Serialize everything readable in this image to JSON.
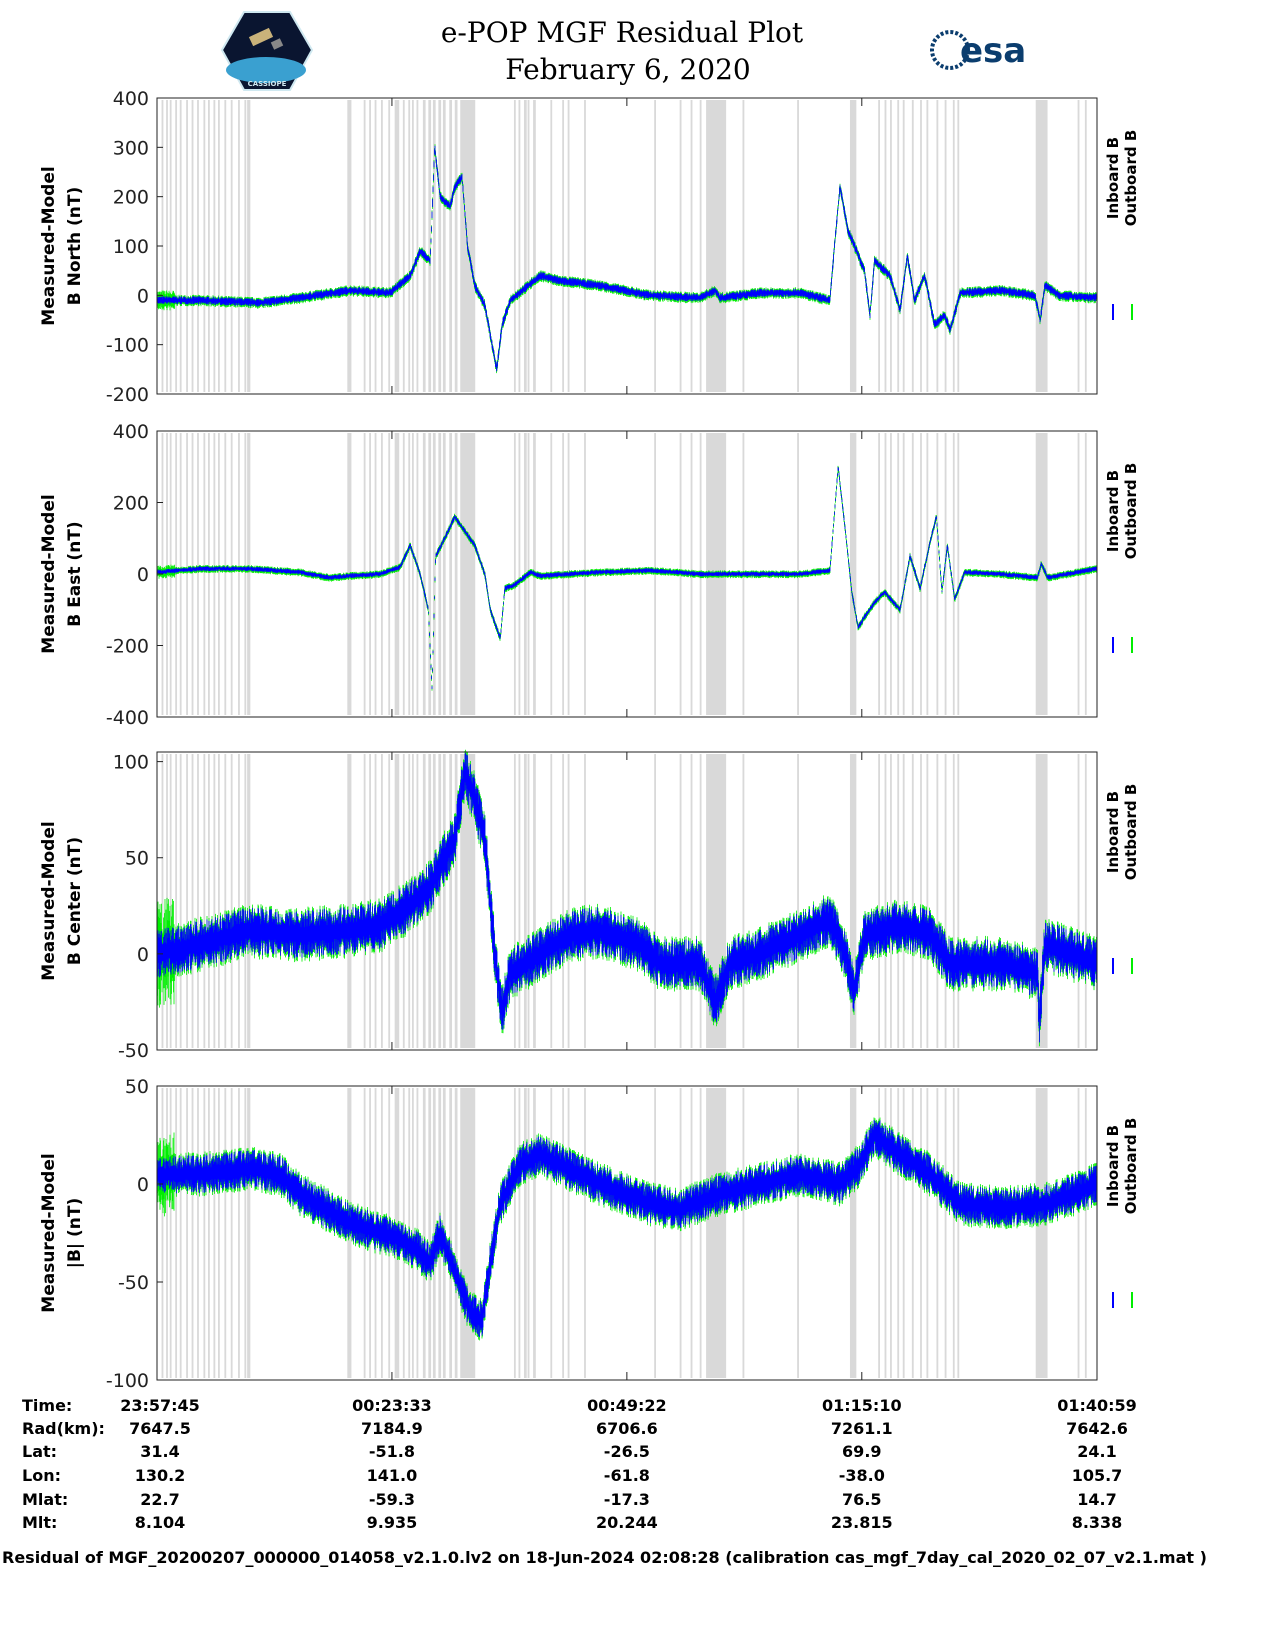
{
  "header": {
    "title": "e-POP MGF Residual Plot",
    "date": "February 6, 2020",
    "left_logo_text": "CASSIOPE",
    "right_logo_text": "esa"
  },
  "colors": {
    "inboard": "#0000ff",
    "outboard": "#00ee00",
    "gap": "#d9d9d9"
  },
  "chart_data": {
    "type": "line",
    "x_unit": "minutes since 23:57:45",
    "xlim": [
      0,
      103.23
    ],
    "x_ticks": [
      0,
      25.8,
      51.6,
      77.4,
      103.23
    ],
    "gap_bands_minutes": [
      [
        0.5,
        0.2
      ],
      [
        1.0,
        0.2
      ],
      [
        1.4,
        0.2
      ],
      [
        2.0,
        0.2
      ],
      [
        2.5,
        0.2
      ],
      [
        3.2,
        0.2
      ],
      [
        3.8,
        0.2
      ],
      [
        4.4,
        0.2
      ],
      [
        5.1,
        0.2
      ],
      [
        5.6,
        0.2
      ],
      [
        6.2,
        0.2
      ],
      [
        6.7,
        0.2
      ],
      [
        7.4,
        0.2
      ],
      [
        8.1,
        0.2
      ],
      [
        8.9,
        0.2
      ],
      [
        9.6,
        0.2
      ],
      [
        9.9,
        0.35
      ],
      [
        20.9,
        0.45
      ],
      [
        22.7,
        0.2
      ],
      [
        23.3,
        0.2
      ],
      [
        23.9,
        0.2
      ],
      [
        24.6,
        0.2
      ],
      [
        25.4,
        0.2
      ],
      [
        26.1,
        0.5
      ],
      [
        27.0,
        0.2
      ],
      [
        27.6,
        0.2
      ],
      [
        28.0,
        0.2
      ],
      [
        28.5,
        0.2
      ],
      [
        29.2,
        0.3
      ],
      [
        29.8,
        0.3
      ],
      [
        30.3,
        0.3
      ],
      [
        30.9,
        0.3
      ],
      [
        31.4,
        0.3
      ],
      [
        32.1,
        0.3
      ],
      [
        32.7,
        0.3
      ],
      [
        33.3,
        1.65
      ],
      [
        39.2,
        0.2
      ],
      [
        39.7,
        0.2
      ],
      [
        40.3,
        0.3
      ],
      [
        40.7,
        0.2
      ],
      [
        41.3,
        0.3
      ],
      [
        43.2,
        0.2
      ],
      [
        44.5,
        0.2
      ],
      [
        45.1,
        0.2
      ],
      [
        46.9,
        0.2
      ],
      [
        54.6,
        0.2
      ],
      [
        57.4,
        0.2
      ],
      [
        58.6,
        0.2
      ],
      [
        59.6,
        0.2
      ],
      [
        60.3,
        2.2
      ],
      [
        64.3,
        0.2
      ],
      [
        70.3,
        0.2
      ],
      [
        76.1,
        0.7
      ],
      [
        79.2,
        0.2
      ],
      [
        79.9,
        0.2
      ],
      [
        80.5,
        0.2
      ],
      [
        81.3,
        0.2
      ],
      [
        81.9,
        0.2
      ],
      [
        82.9,
        0.2
      ],
      [
        83.8,
        0.2
      ],
      [
        84.5,
        0.2
      ],
      [
        85.6,
        0.2
      ],
      [
        86.5,
        0.2
      ],
      [
        87.4,
        0.2
      ],
      [
        87.9,
        0.2
      ],
      [
        96.5,
        1.3
      ],
      [
        101.1,
        0.2
      ],
      [
        101.9,
        0.2
      ]
    ],
    "legend": [
      "Inboard B",
      "Outboard B"
    ],
    "panels": [
      {
        "ylabel": [
          "Measured-Model",
          "B North (nT)"
        ],
        "ylim": [
          -200,
          400
        ],
        "yticks": [
          -200,
          -100,
          0,
          100,
          200,
          300,
          400
        ],
        "noise": 6,
        "points": [
          [
            0,
            -10
          ],
          [
            4.7,
            -10
          ],
          [
            11.3,
            -15
          ],
          [
            15.7,
            -5
          ],
          [
            21.2,
            10
          ],
          [
            25.6,
            5
          ],
          [
            27.8,
            40
          ],
          [
            28.9,
            90
          ],
          [
            30.0,
            70
          ],
          [
            30.5,
            300
          ],
          [
            31.1,
            200
          ],
          [
            32.2,
            180
          ],
          [
            32.7,
            220
          ],
          [
            33.5,
            240
          ],
          [
            34.1,
            100
          ],
          [
            34.9,
            20
          ],
          [
            36.0,
            -20
          ],
          [
            36.8,
            -100
          ],
          [
            37.3,
            -150
          ],
          [
            37.9,
            -60
          ],
          [
            38.8,
            -10
          ],
          [
            42.1,
            40
          ],
          [
            44.2,
            30
          ],
          [
            48.6,
            20
          ],
          [
            54.1,
            0
          ],
          [
            59.6,
            -5
          ],
          [
            61.3,
            10
          ],
          [
            61.8,
            -5
          ],
          [
            66.2,
            5
          ],
          [
            70.6,
            5
          ],
          [
            73.9,
            -10
          ],
          [
            74.4,
            100
          ],
          [
            75.0,
            220
          ],
          [
            75.9,
            130
          ],
          [
            76.6,
            100
          ],
          [
            77.7,
            50
          ],
          [
            78.3,
            -40
          ],
          [
            78.8,
            70
          ],
          [
            80.5,
            40
          ],
          [
            81.6,
            -30
          ],
          [
            82.4,
            80
          ],
          [
            83.2,
            -10
          ],
          [
            84.3,
            40
          ],
          [
            85.4,
            -60
          ],
          [
            86.5,
            -40
          ],
          [
            87.1,
            -70
          ],
          [
            88.2,
            5
          ],
          [
            92.6,
            10
          ],
          [
            96.4,
            0
          ],
          [
            97.0,
            -50
          ],
          [
            97.5,
            20
          ],
          [
            99.1,
            0
          ],
          [
            103.2,
            -5
          ]
        ]
      },
      {
        "ylabel": [
          "Measured-Model",
          "B East (nT)"
        ],
        "ylim": [
          -400,
          400
        ],
        "yticks": [
          -400,
          -200,
          0,
          200,
          400
        ],
        "noise": 5,
        "points": [
          [
            0,
            5
          ],
          [
            4.7,
            15
          ],
          [
            10.2,
            15
          ],
          [
            15.7,
            5
          ],
          [
            19.0,
            -10
          ],
          [
            21.2,
            -5
          ],
          [
            24.5,
            0
          ],
          [
            26.7,
            20
          ],
          [
            27.8,
            80
          ],
          [
            28.9,
            0
          ],
          [
            29.8,
            -100
          ],
          [
            30.2,
            -320
          ],
          [
            30.6,
            50
          ],
          [
            31.6,
            100
          ],
          [
            32.7,
            160
          ],
          [
            33.8,
            120
          ],
          [
            34.9,
            80
          ],
          [
            36.0,
            0
          ],
          [
            36.6,
            -100
          ],
          [
            37.7,
            -180
          ],
          [
            38.2,
            -40
          ],
          [
            39.3,
            -30
          ],
          [
            41.0,
            5
          ],
          [
            42.1,
            -5
          ],
          [
            48.6,
            5
          ],
          [
            54.1,
            10
          ],
          [
            59.6,
            0
          ],
          [
            70.6,
            0
          ],
          [
            73.9,
            10
          ],
          [
            74.8,
            300
          ],
          [
            75.6,
            120
          ],
          [
            76.3,
            -50
          ],
          [
            77.0,
            -150
          ],
          [
            77.7,
            -120
          ],
          [
            78.8,
            -80
          ],
          [
            79.9,
            -50
          ],
          [
            81.6,
            -100
          ],
          [
            82.7,
            50
          ],
          [
            83.8,
            -40
          ],
          [
            84.9,
            90
          ],
          [
            85.6,
            160
          ],
          [
            86.2,
            -50
          ],
          [
            86.8,
            80
          ],
          [
            87.6,
            -70
          ],
          [
            88.7,
            5
          ],
          [
            92.6,
            0
          ],
          [
            96.7,
            -10
          ],
          [
            97.1,
            30
          ],
          [
            97.8,
            -10
          ],
          [
            103.2,
            15
          ]
        ]
      },
      {
        "ylabel": [
          "Measured-Model",
          "B Center (nT)"
        ],
        "ylim": [
          -50,
          105
        ],
        "yticks": [
          -50,
          0,
          50,
          100
        ],
        "noise": 9,
        "points": [
          [
            0,
            0
          ],
          [
            4.7,
            5
          ],
          [
            10.2,
            12
          ],
          [
            15.7,
            10
          ],
          [
            21.2,
            12
          ],
          [
            24.5,
            15
          ],
          [
            27.8,
            25
          ],
          [
            30.0,
            35
          ],
          [
            31.6,
            50
          ],
          [
            32.7,
            60
          ],
          [
            33.8,
            95
          ],
          [
            34.9,
            80
          ],
          [
            36.0,
            60
          ],
          [
            37.1,
            0
          ],
          [
            37.9,
            -30
          ],
          [
            38.8,
            -10
          ],
          [
            42.1,
            0
          ],
          [
            45.3,
            10
          ],
          [
            48.6,
            12
          ],
          [
            53.0,
            5
          ],
          [
            55.2,
            -5
          ],
          [
            59.6,
            -5
          ],
          [
            61.3,
            -25
          ],
          [
            62.9,
            -5
          ],
          [
            66.2,
            0
          ],
          [
            70.6,
            10
          ],
          [
            73.9,
            18
          ],
          [
            75.6,
            0
          ],
          [
            76.6,
            -20
          ],
          [
            77.7,
            10
          ],
          [
            81.6,
            15
          ],
          [
            84.9,
            10
          ],
          [
            87.1,
            -5
          ],
          [
            92.6,
            -5
          ],
          [
            96.7,
            -10
          ],
          [
            96.9,
            -35
          ],
          [
            97.5,
            5
          ],
          [
            103.2,
            -5
          ]
        ]
      },
      {
        "ylabel": [
          "Measured-Model",
          "|B| (nT)"
        ],
        "ylim": [
          -100,
          50
        ],
        "yticks": [
          -100,
          -50,
          0,
          50
        ],
        "noise": 7,
        "points": [
          [
            0,
            5
          ],
          [
            4.7,
            5
          ],
          [
            10.2,
            8
          ],
          [
            13.5,
            5
          ],
          [
            15.7,
            -5
          ],
          [
            21.2,
            -20
          ],
          [
            26.7,
            -28
          ],
          [
            28.9,
            -35
          ],
          [
            30.0,
            -40
          ],
          [
            31.1,
            -25
          ],
          [
            32.7,
            -45
          ],
          [
            34.4,
            -65
          ],
          [
            35.7,
            -70
          ],
          [
            36.6,
            -40
          ],
          [
            37.7,
            -10
          ],
          [
            39.9,
            10
          ],
          [
            42.1,
            15
          ],
          [
            44.2,
            10
          ],
          [
            48.6,
            0
          ],
          [
            54.1,
            -10
          ],
          [
            57.4,
            -13
          ],
          [
            61.8,
            -5
          ],
          [
            66.2,
            0
          ],
          [
            70.6,
            5
          ],
          [
            75.0,
            0
          ],
          [
            77.2,
            10
          ],
          [
            78.8,
            25
          ],
          [
            81.6,
            15
          ],
          [
            84.9,
            5
          ],
          [
            88.2,
            -10
          ],
          [
            92.6,
            -12
          ],
          [
            98.1,
            -10
          ],
          [
            103.2,
            0
          ]
        ]
      }
    ]
  },
  "table": {
    "labels": [
      "Time:",
      "Rad(km):",
      "Lat:",
      "Lon:",
      "Mlat:",
      "Mlt:"
    ],
    "columns": [
      [
        "23:57:45",
        "7647.5",
        "31.4",
        "130.2",
        "22.7",
        "8.104"
      ],
      [
        "00:23:33",
        "7184.9",
        "-51.8",
        "141.0",
        "-59.3",
        "9.935"
      ],
      [
        "00:49:22",
        "6706.6",
        "-26.5",
        "-61.8",
        "-17.3",
        "20.244"
      ],
      [
        "01:15:10",
        "7261.1",
        "69.9",
        "-38.0",
        "76.5",
        "23.815"
      ],
      [
        "01:40:59",
        "7642.6",
        "24.1",
        "105.7",
        "14.7",
        "8.338"
      ]
    ]
  },
  "footer": "Residual of MGF_20200207_000000_014058_v2.1.0.lv2 on 18-Jun-2024 02:08:28 (calibration cas_mgf_7day_cal_2020_02_07_v2.1.mat )"
}
